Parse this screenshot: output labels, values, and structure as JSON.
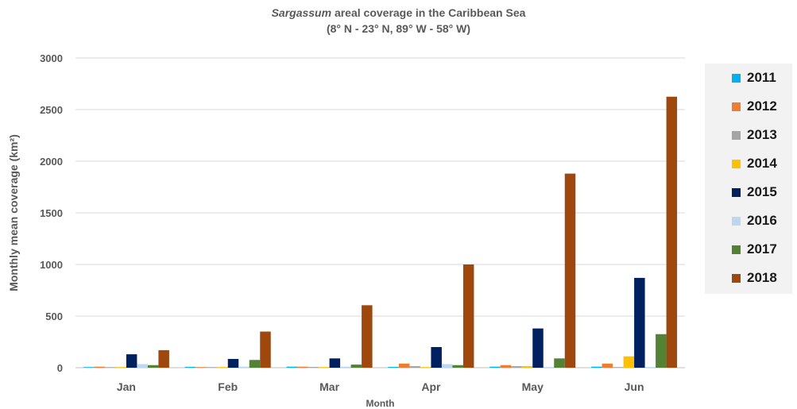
{
  "title": {
    "italic_part": "Sargassum",
    "rest": " areal coverage in the Caribbean Sea",
    "subtitle": "(8° N - 23° N, 89° W - 58° W)"
  },
  "chart_data": {
    "type": "bar",
    "title": "Sargassum areal coverage in the Caribbean Sea",
    "subtitle": "(8° N - 23° N, 89° W - 58° W)",
    "xlabel": "Month",
    "ylabel": "Monthly mean coverage (km²)",
    "ylim": [
      0,
      3000
    ],
    "yticks": [
      0,
      500,
      1000,
      1500,
      2000,
      2500,
      3000
    ],
    "grid": true,
    "legend": "right",
    "categories": [
      "Jan",
      "Feb",
      "Mar",
      "Apr",
      "May",
      "Jun"
    ],
    "series": [
      {
        "name": "2011",
        "color": "#00b0f0",
        "values": [
          2,
          8,
          10,
          8,
          10,
          10
        ]
      },
      {
        "name": "2012",
        "color": "#ed7d31",
        "values": [
          10,
          5,
          10,
          40,
          25,
          40
        ]
      },
      {
        "name": "2013",
        "color": "#a5a5a5",
        "values": [
          2,
          5,
          8,
          15,
          15,
          5
        ]
      },
      {
        "name": "2014",
        "color": "#ffc000",
        "values": [
          2,
          2,
          2,
          2,
          15,
          110
        ]
      },
      {
        "name": "2015",
        "color": "#002060",
        "values": [
          130,
          85,
          90,
          200,
          380,
          870
        ]
      },
      {
        "name": "2016",
        "color": "#bdd7ee",
        "values": [
          35,
          10,
          10,
          35,
          5,
          5
        ]
      },
      {
        "name": "2017",
        "color": "#548235",
        "values": [
          25,
          75,
          30,
          25,
          90,
          325
        ]
      },
      {
        "name": "2018",
        "color": "#9e480e",
        "values": [
          170,
          350,
          605,
          1000,
          1880,
          2625
        ]
      }
    ]
  }
}
